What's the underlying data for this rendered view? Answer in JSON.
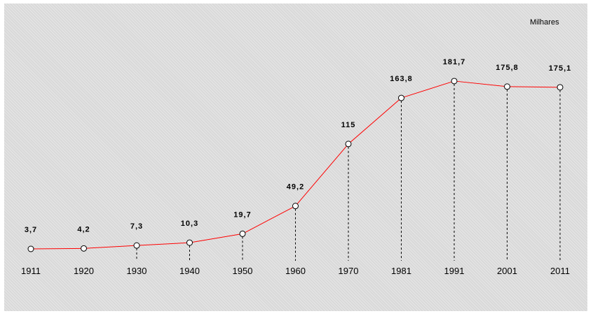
{
  "chart_data": {
    "type": "line",
    "unit_label": "Milhares",
    "categories": [
      "1911",
      "1920",
      "1930",
      "1940",
      "1950",
      "1960",
      "1970",
      "1981",
      "1991",
      "2001",
      "2011"
    ],
    "x": [
      1911,
      1920,
      1930,
      1940,
      1950,
      1960,
      1970,
      1981,
      1991,
      2001,
      2011
    ],
    "series": [
      {
        "values": [
          3.7,
          4.2,
          7.3,
          10.3,
          19.7,
          49.2,
          115,
          163.8,
          181.7,
          175.8,
          175.1
        ],
        "labels": [
          "3,7",
          "4,2",
          "7,3",
          "10,3",
          "19,7",
          "49,2",
          "115",
          "163,8",
          "181,7",
          "175,8",
          "175,1"
        ]
      }
    ],
    "ylim": [
      0,
      195
    ],
    "grid": false,
    "legend": "none",
    "line_color": "#ff0000",
    "marker_fill": "#ffffff",
    "marker_stroke": "#000000",
    "drop_line_color": "#000000",
    "background_color": "#d9d9d9"
  }
}
